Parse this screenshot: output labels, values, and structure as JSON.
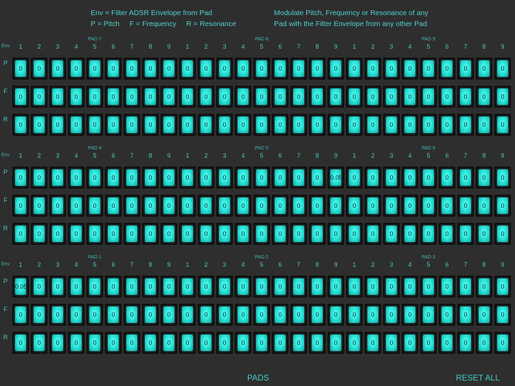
{
  "header": {
    "line1": "Env = Filter ADSR Envelope from Pad",
    "line2": "P = Pitch     F = Frequency     R = Resonance",
    "desc1": "Modulate Pitch, Frequency or Resonance of any",
    "desc2": "Pad with the Filter Envelope from any other Pad"
  },
  "env_label": "Env",
  "column_numbers": [
    "1",
    "2",
    "3",
    "4",
    "5",
    "6",
    "7",
    "8",
    "9"
  ],
  "row_labels": [
    "P",
    "F",
    "R"
  ],
  "groups": [
    {
      "sections": [
        "PAD 7",
        "PAD 8",
        "PAD 9"
      ],
      "rows": [
        [
          "0",
          "0",
          "0",
          "0",
          "0",
          "0",
          "0",
          "0",
          "0",
          "0",
          "0",
          "0",
          "0",
          "0",
          "0",
          "0",
          "0",
          "0",
          "0",
          "0",
          "0",
          "0",
          "0",
          "0",
          "0",
          "0",
          "0"
        ],
        [
          "0",
          "0",
          "0",
          "0",
          "0",
          "0",
          "0",
          "0",
          "0",
          "0",
          "0",
          "0",
          "0",
          "0",
          "0",
          "0",
          "0",
          "0",
          "0",
          "0",
          "0",
          "0",
          "0",
          "0",
          "0",
          "0",
          "0"
        ],
        [
          "0",
          "0",
          "0",
          "0",
          "0",
          "0",
          "0",
          "0",
          "0",
          "0",
          "0",
          "0",
          "0",
          "0",
          "0",
          "0",
          "0",
          "0",
          "0",
          "0",
          "0",
          "0",
          "0",
          "0",
          "0",
          "0",
          "0"
        ]
      ]
    },
    {
      "sections": [
        "PAD 4",
        "PAD 5",
        "PAD 6"
      ],
      "rows": [
        [
          "0",
          "0",
          "0",
          "0",
          "0",
          "0",
          "0",
          "0",
          "0",
          "0",
          "0",
          "0",
          "0",
          "0",
          "0",
          "0",
          "0",
          "0.05",
          "0",
          "0",
          "0",
          "0",
          "0",
          "0",
          "0",
          "0",
          "0"
        ],
        [
          "0",
          "0",
          "0",
          "0",
          "0",
          "0",
          "0",
          "0",
          "0",
          "0",
          "0",
          "0",
          "0",
          "0",
          "0",
          "0",
          "0",
          "0",
          "0",
          "0",
          "0",
          "0",
          "0",
          "0",
          "0",
          "0",
          "0"
        ],
        [
          "0",
          "0",
          "0",
          "0",
          "0",
          "0",
          "0",
          "0",
          "0",
          "0",
          "0",
          "0",
          "0",
          "0",
          "0",
          "0",
          "0",
          "0",
          "0",
          "0",
          "0",
          "0",
          "0",
          "0",
          "0",
          "0",
          "0"
        ]
      ]
    },
    {
      "sections": [
        "PAD 1",
        "PAD 2",
        "PAD 3"
      ],
      "rows": [
        [
          "0.05",
          "0",
          "0",
          "0",
          "0",
          "0",
          "0",
          "0",
          "0",
          "0",
          "0",
          "0",
          "0",
          "0",
          "0",
          "0",
          "0",
          "0",
          "0",
          "0",
          "0",
          "0",
          "0",
          "0",
          "0",
          "0",
          "0"
        ],
        [
          "0",
          "0",
          "0",
          "0",
          "0",
          "0",
          "0",
          "0",
          "0",
          "0",
          "0",
          "0",
          "0",
          "0",
          "0",
          "0",
          "0",
          "0",
          "0",
          "0",
          "0",
          "0",
          "0",
          "0",
          "0",
          "0",
          "0"
        ],
        [
          "0",
          "0",
          "0",
          "0",
          "0",
          "0",
          "0",
          "0",
          "0",
          "0",
          "0",
          "0",
          "0",
          "0",
          "0",
          "0",
          "0",
          "0",
          "0",
          "0",
          "0",
          "0",
          "0",
          "0",
          "0",
          "0",
          "0"
        ]
      ]
    }
  ],
  "footer": {
    "pads_label": "PADS",
    "reset_label": "RESET ALL"
  }
}
